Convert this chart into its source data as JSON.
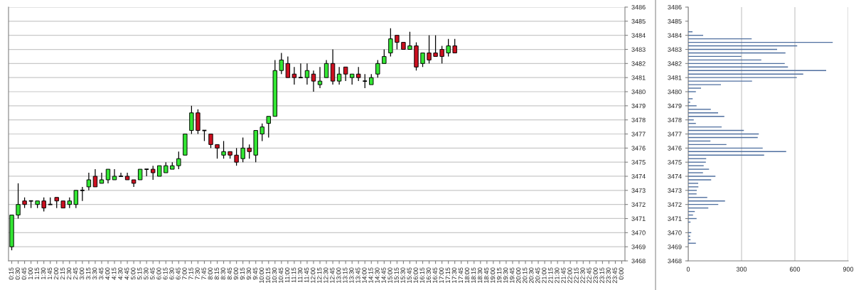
{
  "chart_data": [
    {
      "type": "candlestick",
      "categories": [
        "0:15",
        "0:30",
        "0:45",
        "1:00",
        "1:15",
        "1:30",
        "1:45",
        "2:00",
        "2:15",
        "2:30",
        "2:45",
        "3:00",
        "3:15",
        "3:30",
        "3:45",
        "4:00",
        "4:15",
        "4:30",
        "4:45",
        "5:00",
        "5:15",
        "5:30",
        "5:45",
        "6:00",
        "6:15",
        "6:30",
        "6:45",
        "7:00",
        "7:15",
        "7:30",
        "7:45",
        "8:00",
        "8:15",
        "8:30",
        "8:45",
        "9:00",
        "9:15",
        "9:30",
        "9:45",
        "10:00",
        "10:15",
        "10:30",
        "10:45",
        "11:00",
        "11:15",
        "11:30",
        "11:45",
        "12:00",
        "12:15",
        "12:30",
        "12:45",
        "13:00",
        "13:15",
        "13:30",
        "13:45",
        "14:00",
        "14:15",
        "14:30",
        "14:45",
        "15:00",
        "15:15",
        "15:30",
        "15:45",
        "16:00",
        "16:15",
        "16:30",
        "16:45",
        "17:00",
        "17:15",
        "17:30",
        "17:45",
        "18:00",
        "18:15",
        "18:30",
        "18:45",
        "19:00",
        "19:15",
        "19:30",
        "19:45",
        "20:00",
        "20:15",
        "20:30",
        "20:45",
        "21:00",
        "21:15",
        "21:30",
        "21:45",
        "22:00",
        "22:15",
        "22:30",
        "22:45",
        "23:00",
        "23:15",
        "23:30",
        "23:45",
        "0:00"
      ],
      "ohlc": [
        [
          3469.0,
          3471.25,
          3468.75,
          3471.25
        ],
        [
          3471.25,
          3473.5,
          3471.0,
          3472.0
        ],
        [
          3472.25,
          3472.5,
          3471.75,
          3472.0
        ],
        [
          3472.25,
          3472.25,
          3471.75,
          3472.25
        ],
        [
          3472.0,
          3472.25,
          3471.75,
          3472.25
        ],
        [
          3472.25,
          3472.5,
          3471.5,
          3471.75
        ],
        [
          3472.0,
          3472.5,
          3472.0,
          3472.0
        ],
        [
          3472.5,
          3472.5,
          3471.75,
          3472.25
        ],
        [
          3472.25,
          3472.25,
          3471.75,
          3471.75
        ],
        [
          3472.0,
          3472.5,
          3471.75,
          3472.25
        ],
        [
          3472.0,
          3473.0,
          3471.75,
          3473.0
        ],
        [
          3473.0,
          3473.25,
          3472.25,
          3473.0
        ],
        [
          3473.25,
          3474.25,
          3473.0,
          3473.75
        ],
        [
          3474.0,
          3474.5,
          3473.25,
          3473.25
        ],
        [
          3473.5,
          3474.25,
          3473.5,
          3473.75
        ],
        [
          3473.75,
          3474.5,
          3473.5,
          3474.5
        ],
        [
          3473.75,
          3474.5,
          3473.75,
          3474.0
        ],
        [
          3474.0,
          3474.25,
          3474.0,
          3474.0
        ],
        [
          3474.0,
          3474.25,
          3473.75,
          3473.75
        ],
        [
          3473.75,
          3473.75,
          3473.25,
          3473.5
        ],
        [
          3473.75,
          3474.5,
          3473.75,
          3474.5
        ],
        [
          3474.5,
          3474.5,
          3474.0,
          3474.5
        ],
        [
          3474.5,
          3474.75,
          3473.75,
          3474.25
        ],
        [
          3474.0,
          3474.75,
          3474.0,
          3474.75
        ],
        [
          3474.25,
          3475.0,
          3474.25,
          3474.75
        ],
        [
          3474.5,
          3475.0,
          3474.5,
          3474.75
        ],
        [
          3474.75,
          3475.75,
          3474.5,
          3475.25
        ],
        [
          3475.5,
          3477.0,
          3475.5,
          3477.0
        ],
        [
          3477.25,
          3479.0,
          3477.0,
          3478.5
        ],
        [
          3478.5,
          3478.75,
          3477.0,
          3477.25
        ],
        [
          3477.25,
          3477.25,
          3476.5,
          3477.25
        ],
        [
          3477.0,
          3477.0,
          3476.0,
          3476.25
        ],
        [
          3476.25,
          3476.25,
          3475.25,
          3476.0
        ],
        [
          3475.5,
          3476.5,
          3475.25,
          3475.75
        ],
        [
          3475.75,
          3475.75,
          3475.25,
          3475.5
        ],
        [
          3475.5,
          3476.0,
          3474.75,
          3475.0
        ],
        [
          3475.25,
          3476.75,
          3475.0,
          3476.0
        ],
        [
          3476.0,
          3476.25,
          3475.25,
          3475.75
        ],
        [
          3475.5,
          3477.25,
          3475.0,
          3477.25
        ],
        [
          3477.0,
          3477.75,
          3476.5,
          3477.5
        ],
        [
          3477.75,
          3478.25,
          3476.75,
          3478.25
        ],
        [
          3478.25,
          3482.25,
          3478.25,
          3481.5
        ],
        [
          3481.5,
          3482.75,
          3481.25,
          3482.25
        ],
        [
          3482.0,
          3482.5,
          3481.0,
          3481.0
        ],
        [
          3481.25,
          3481.75,
          3480.5,
          3481.0
        ],
        [
          3481.0,
          3482.0,
          3481.0,
          3481.0
        ],
        [
          3481.0,
          3482.0,
          3480.5,
          3481.5
        ],
        [
          3481.25,
          3481.5,
          3480.0,
          3480.75
        ],
        [
          3480.5,
          3481.75,
          3480.25,
          3480.75
        ],
        [
          3481.0,
          3482.25,
          3481.0,
          3482.0
        ],
        [
          3482.0,
          3483.0,
          3480.5,
          3480.75
        ],
        [
          3480.75,
          3481.75,
          3480.5,
          3481.25
        ],
        [
          3481.75,
          3481.75,
          3480.75,
          3481.25
        ],
        [
          3481.0,
          3481.25,
          3480.5,
          3481.25
        ],
        [
          3481.25,
          3481.75,
          3480.75,
          3481.0
        ],
        [
          3480.75,
          3481.25,
          3480.25,
          3480.75
        ],
        [
          3480.5,
          3481.25,
          3480.5,
          3481.0
        ],
        [
          3481.25,
          3482.25,
          3481.0,
          3482.0
        ],
        [
          3482.0,
          3483.0,
          3482.0,
          3482.5
        ],
        [
          3482.75,
          3484.5,
          3482.5,
          3483.75
        ],
        [
          3484.0,
          3484.0,
          3483.0,
          3483.5
        ],
        [
          3483.5,
          3483.5,
          3483.0,
          3483.0
        ],
        [
          3483.0,
          3484.25,
          3483.0,
          3483.25
        ],
        [
          3483.25,
          3483.5,
          3481.5,
          3481.75
        ],
        [
          3482.0,
          3482.75,
          3481.75,
          3482.75
        ],
        [
          3482.75,
          3484.0,
          3482.0,
          3482.25
        ],
        [
          3482.75,
          3484.0,
          3482.5,
          3482.5
        ],
        [
          3483.0,
          3483.25,
          3482.0,
          3482.5
        ],
        [
          3482.75,
          3483.75,
          3482.5,
          3483.25
        ],
        [
          3483.25,
          3483.75,
          3482.75,
          3482.75
        ],
        null,
        null,
        null,
        null,
        null,
        null,
        null,
        null,
        null,
        null,
        null,
        null,
        null,
        null,
        null,
        null,
        null,
        null,
        null,
        null,
        null,
        null,
        null,
        null,
        null,
        null
      ],
      "colors": [
        "#33e633",
        "#33e633",
        "#cc1020",
        "#000000",
        "#33e633",
        "#cc1020",
        "#000000",
        "#cc1020",
        "#cc1020",
        "#33e633",
        "#33e633",
        "#000000",
        "#33e633",
        "#cc1020",
        "#33e633",
        "#33e633",
        "#33e633",
        "#000000",
        "#cc1020",
        "#cc1020",
        "#33e633",
        "#000000",
        "#cc1020",
        "#33e633",
        "#33e633",
        "#33e633",
        "#33e633",
        "#33e633",
        "#33e633",
        "#cc1020",
        "#000000",
        "#cc1020",
        "#cc1020",
        "#33e633",
        "#cc1020",
        "#cc1020",
        "#33e633",
        "#cc1020",
        "#33e633",
        "#33e633",
        "#33e633",
        "#33e633",
        "#33e633",
        "#cc1020",
        "#cc1020",
        "#000000",
        "#33e633",
        "#cc1020",
        "#33e633",
        "#33e633",
        "#cc1020",
        "#33e633",
        "#cc1020",
        "#33e633",
        "#cc1020",
        "#000000",
        "#33e633",
        "#33e633",
        "#33e633",
        "#33e633",
        "#cc1020",
        "#cc1020",
        "#33e633",
        "#cc1020",
        "#33e633",
        "#cc1020",
        "#cc1020",
        "#cc1020",
        "#33e633",
        "#cc1020",
        null,
        null,
        null,
        null,
        null,
        null,
        null,
        null,
        null,
        null,
        null,
        null,
        null,
        null,
        null,
        null,
        null,
        null,
        null,
        null,
        null,
        null,
        null,
        null,
        null,
        null
      ],
      "ylim": [
        3468,
        3486
      ],
      "yticks": [
        3468,
        3469,
        3470,
        3471,
        3472,
        3473,
        3474,
        3475,
        3476,
        3477,
        3478,
        3479,
        3480,
        3481,
        3482,
        3483,
        3484,
        3485,
        3486
      ],
      "grid": "y"
    },
    {
      "type": "bar",
      "orientation": "horizontal",
      "color": "#4f6f9f",
      "x": [
        3484.25,
        3484.0,
        3483.75,
        3483.5,
        3483.25,
        3483.0,
        3482.75,
        3482.5,
        3482.25,
        3482.0,
        3481.75,
        3481.5,
        3481.25,
        3481.0,
        3480.75,
        3480.5,
        3480.25,
        3480.0,
        3479.5,
        3479.25,
        3479.0,
        3478.75,
        3478.5,
        3478.25,
        3478.0,
        3477.75,
        3477.5,
        3477.25,
        3477.0,
        3476.75,
        3476.5,
        3476.25,
        3476.0,
        3475.75,
        3475.5,
        3475.25,
        3475.0,
        3474.75,
        3474.5,
        3474.25,
        3474.0,
        3473.75,
        3473.5,
        3473.25,
        3473.0,
        3472.75,
        3472.5,
        3472.25,
        3472.0,
        3471.75,
        3471.5,
        3471.25,
        3471.0,
        3470.75,
        3470.0,
        3469.75,
        3469.5,
        3469.25
      ],
      "values": [
        24,
        84,
        357,
        813,
        613,
        500,
        547,
        299,
        411,
        543,
        561,
        776,
        647,
        611,
        359,
        184,
        72,
        43,
        25,
        11,
        47,
        127,
        168,
        203,
        31,
        43,
        188,
        313,
        397,
        391,
        125,
        215,
        419,
        551,
        427,
        101,
        99,
        87,
        117,
        83,
        153,
        129,
        56,
        57,
        48,
        47,
        107,
        207,
        169,
        113,
        37,
        27,
        47,
        13,
        17,
        11,
        13,
        43
      ],
      "xlim": [
        0,
        900
      ],
      "xticks": [
        0,
        300,
        600,
        900
      ],
      "ylim": [
        3468,
        3486
      ],
      "yticks": [
        3468,
        3469,
        3470,
        3471,
        3472,
        3473,
        3474,
        3475,
        3476,
        3477,
        3478,
        3479,
        3480,
        3481,
        3482,
        3483,
        3484,
        3485,
        3486
      ],
      "grid": "x"
    }
  ]
}
